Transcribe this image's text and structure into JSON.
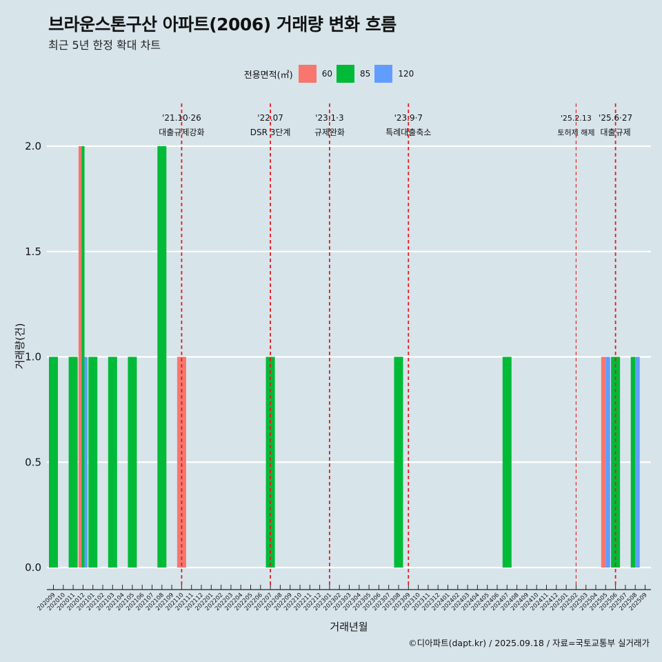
{
  "title": "브라운스톤구산 아파트(2006) 거래량 변화 흐름",
  "subtitle": "최근 5년 한정 확대 차트",
  "legend": {
    "title": "전용면적(㎡)",
    "items": [
      {
        "label": "60",
        "color": "#f8766d"
      },
      {
        "label": "85",
        "color": "#00ba38"
      },
      {
        "label": "120",
        "color": "#619cff"
      }
    ]
  },
  "caption": "©디아파트(dapt.kr) / 2025.09.18 / 자료=국토교통부 실거래가",
  "chart_data": {
    "type": "bar",
    "xlabel": "거래년월",
    "ylabel": "거래량(건)",
    "ylim": [
      0,
      2
    ],
    "yticks": [
      "0.0",
      "0.5",
      "1.0",
      "1.5",
      "2.0"
    ],
    "categories": [
      "202009",
      "202010",
      "202011",
      "202012",
      "202101",
      "202102",
      "202103",
      "202104",
      "202105",
      "202106",
      "202107",
      "202108",
      "202109",
      "202110",
      "202111",
      "202112",
      "202201",
      "202202",
      "202203",
      "202204",
      "202205",
      "202206",
      "202207",
      "202208",
      "202209",
      "202210",
      "202211",
      "202212",
      "202301",
      "202302",
      "202303",
      "202304",
      "202305",
      "202306",
      "202307",
      "202308",
      "202309",
      "202310",
      "202311",
      "202312",
      "202401",
      "202402",
      "202403",
      "202404",
      "202405",
      "202406",
      "202407",
      "202408",
      "202409",
      "202410",
      "202411",
      "202412",
      "202501",
      "202502",
      "202503",
      "202504",
      "202505",
      "202506",
      "202507",
      "202508",
      "202509"
    ],
    "bars": [
      {
        "month": "202009",
        "series": [
          "85"
        ],
        "values": [
          1
        ]
      },
      {
        "month": "202011",
        "series": [
          "85"
        ],
        "values": [
          1
        ]
      },
      {
        "month": "202012",
        "series": [
          "60",
          "85",
          "120"
        ],
        "values": [
          2,
          2,
          1
        ]
      },
      {
        "month": "202101",
        "series": [
          "85"
        ],
        "values": [
          1
        ]
      },
      {
        "month": "202103",
        "series": [
          "85"
        ],
        "values": [
          1
        ]
      },
      {
        "month": "202105",
        "series": [
          "85"
        ],
        "values": [
          1
        ]
      },
      {
        "month": "202108",
        "series": [
          "85"
        ],
        "values": [
          2
        ]
      },
      {
        "month": "202110",
        "series": [
          "60"
        ],
        "values": [
          1
        ]
      },
      {
        "month": "202207",
        "series": [
          "85"
        ],
        "values": [
          1
        ]
      },
      {
        "month": "202308",
        "series": [
          "85"
        ],
        "values": [
          1
        ]
      },
      {
        "month": "202407",
        "series": [
          "85"
        ],
        "values": [
          1
        ]
      },
      {
        "month": "202505",
        "series": [
          "60",
          "120"
        ],
        "values": [
          1,
          1
        ]
      },
      {
        "month": "202506",
        "series": [
          "85"
        ],
        "values": [
          1
        ]
      },
      {
        "month": "202508",
        "series": [
          "85",
          "120"
        ],
        "values": [
          1,
          1
        ]
      }
    ],
    "events": [
      {
        "month": "202110",
        "date": "'21.10·26",
        "label": "대출규제강화"
      },
      {
        "month": "202207",
        "date": "'22.07",
        "label": "DSR 3단계"
      },
      {
        "month": "202301",
        "date": "'23.1·3",
        "label": "규제완화"
      },
      {
        "month": "202309",
        "date": "'23.9·7",
        "label": "특례대출축소"
      },
      {
        "month": "202502",
        "date": "'25.2.13",
        "label": "토허제 해제"
      },
      {
        "month": "202506",
        "date": "'25.6·27",
        "label": "대출규제"
      }
    ]
  }
}
